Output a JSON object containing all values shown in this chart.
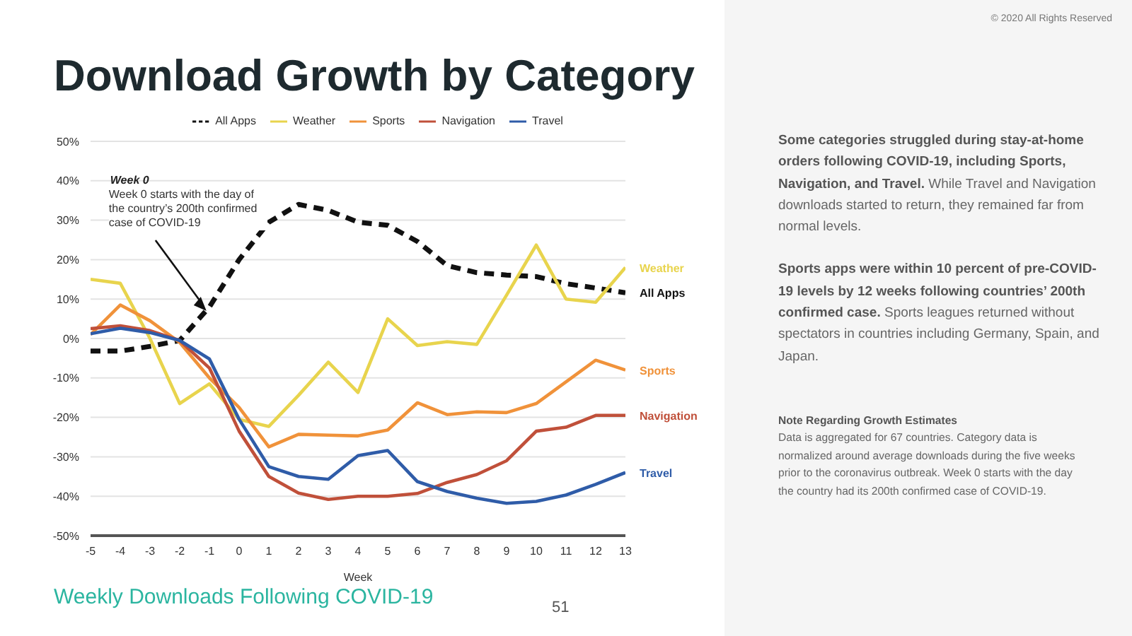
{
  "chart_data": {
    "type": "line",
    "title": "Download Growth by Category",
    "subtitle": "Weekly Downloads Following COVID-19",
    "xlabel": "Week",
    "x": [
      -5,
      -4,
      -3,
      -2,
      -1,
      0,
      1,
      2,
      3,
      4,
      5,
      6,
      7,
      8,
      9,
      10,
      11,
      12,
      13
    ],
    "series": [
      {
        "name": "All Apps",
        "color": "#111111",
        "line_style": "dashed",
        "values": [
          -3.2,
          -3.2,
          -2,
          -0.5,
          8,
          20,
          29.5,
          34,
          32.5,
          29.5,
          28.7,
          24.6,
          18.5,
          16.7,
          16.1,
          15.7,
          13.9,
          12.8,
          11.6
        ]
      },
      {
        "name": "Weather",
        "color": "#e8d44d",
        "values": [
          15,
          14,
          0,
          -16.5,
          -11.5,
          -20.5,
          -22.3,
          -14.4,
          -6,
          -13.7,
          5,
          -1.8,
          -0.8,
          -1.5,
          11,
          23.7,
          10,
          9.2,
          18
        ]
      },
      {
        "name": "Sports",
        "color": "#f0923a",
        "values": [
          1,
          8.5,
          4.5,
          -1,
          -10,
          -17.5,
          -27.5,
          -24.3,
          -24.5,
          -24.7,
          -23.2,
          -16.3,
          -19.3,
          -18.6,
          -18.8,
          -16.5,
          -11,
          -5.5,
          -8
        ]
      },
      {
        "name": "Navigation",
        "color": "#c0503a",
        "values": [
          2.5,
          3.2,
          2,
          -0.5,
          -7.5,
          -23.5,
          -35,
          -39.2,
          -40.8,
          -40,
          -40,
          -39.3,
          -36.5,
          -34.5,
          -31,
          -23.5,
          -22.5,
          -19.5,
          -19.5
        ]
      },
      {
        "name": "Travel",
        "color": "#2f5ca8",
        "values": [
          1.2,
          2.6,
          1.5,
          -0.5,
          -5.2,
          -20.5,
          -32.5,
          -35,
          -35.7,
          -29.7,
          -28.4,
          -36.3,
          -38.8,
          -40.5,
          -41.8,
          -41.3,
          -39.7,
          -37,
          -34
        ]
      }
    ],
    "xlim": [
      -5,
      13
    ],
    "xticks": [
      -5,
      -4,
      -3,
      -2,
      -1,
      0,
      1,
      2,
      3,
      4,
      5,
      6,
      7,
      8,
      9,
      10,
      11,
      12,
      13
    ],
    "ylim": [
      -50,
      50
    ],
    "yticks": [
      {
        "value": -50,
        "label": "-50%"
      },
      {
        "value": -40,
        "label": "-40%"
      },
      {
        "value": -30,
        "label": "-30%"
      },
      {
        "value": -20,
        "label": "-20%"
      },
      {
        "value": -10,
        "label": "-10%"
      },
      {
        "value": 0,
        "label": "0%"
      },
      {
        "value": 10,
        "label": "10%"
      },
      {
        "value": 20,
        "label": "20%"
      },
      {
        "value": 30,
        "label": "30%"
      },
      {
        "value": 40,
        "label": "40%"
      },
      {
        "value": 50,
        "label": "50%"
      }
    ],
    "grid": "y",
    "legend": "top",
    "marker": "none",
    "line_style": "solid",
    "annotations": [
      "Week 0",
      {
        "text": "Week 0 starts with the day of the country’s 200th confirmed case of COVID-19",
        "x": -1.1,
        "y": 7
      },
      "Some categories struggled during stay-at-home orders following COVID-19, including Sports, Navigation, and Travel.",
      "While Travel and Navigation downloads started to return, they remained far from normal levels.",
      "Sports apps were within 10 percent of pre-COVID-19 levels by 12 weeks following countries’ 200th confirmed case.",
      "Sports leagues returned without spectators in countries including Germany, Spain, and Japan.",
      "Note Regarding Growth Estimates",
      "Data is aggregated for 67 countries. Category data is normalized around average downloads during the five weeks prior to the coronavirus outbreak. Week 0 starts with the day the country had its 200th confirmed case of COVID-19.",
      "51",
      "© 2020 All Rights Reserved"
    ]
  }
}
